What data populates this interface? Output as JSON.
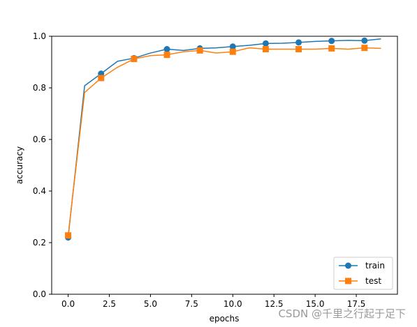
{
  "chart_data": {
    "type": "line",
    "xlabel": "epochs",
    "ylabel": "accuracy",
    "xlim": [
      -1,
      20
    ],
    "ylim": [
      0,
      1.0
    ],
    "xticks": [
      0,
      2.5,
      5,
      7.5,
      10,
      12.5,
      15,
      17.5
    ],
    "xtick_labels": [
      "0.0",
      "2.5",
      "5.0",
      "7.5",
      "10.0",
      "12.5",
      "15.0",
      "17.5"
    ],
    "yticks": [
      0,
      0.2,
      0.4,
      0.6,
      0.8,
      1.0
    ],
    "ytick_labels": [
      "0.0",
      "0.2",
      "0.4",
      "0.6",
      "0.8",
      "1.0"
    ],
    "grid": false,
    "legend_position": "lower-right",
    "x": [
      0,
      1,
      2,
      3,
      4,
      5,
      6,
      7,
      8,
      9,
      10,
      11,
      12,
      13,
      14,
      15,
      16,
      17,
      18,
      19
    ],
    "series": [
      {
        "name": "train",
        "color": "#1f77b4",
        "marker": "circle",
        "markevery": 2,
        "values": [
          0.22,
          0.808,
          0.855,
          0.903,
          0.915,
          0.935,
          0.95,
          0.945,
          0.953,
          0.955,
          0.96,
          0.965,
          0.972,
          0.973,
          0.976,
          0.98,
          0.982,
          0.984,
          0.983,
          0.99
        ]
      },
      {
        "name": "test",
        "color": "#ff7f0e",
        "marker": "square",
        "markevery": 2,
        "values": [
          0.228,
          0.782,
          0.838,
          0.88,
          0.912,
          0.925,
          0.928,
          0.94,
          0.945,
          0.935,
          0.94,
          0.955,
          0.95,
          0.95,
          0.95,
          0.95,
          0.953,
          0.95,
          0.955,
          0.953
        ]
      }
    ]
  },
  "watermark": "CSDN @千里之行起于足下"
}
